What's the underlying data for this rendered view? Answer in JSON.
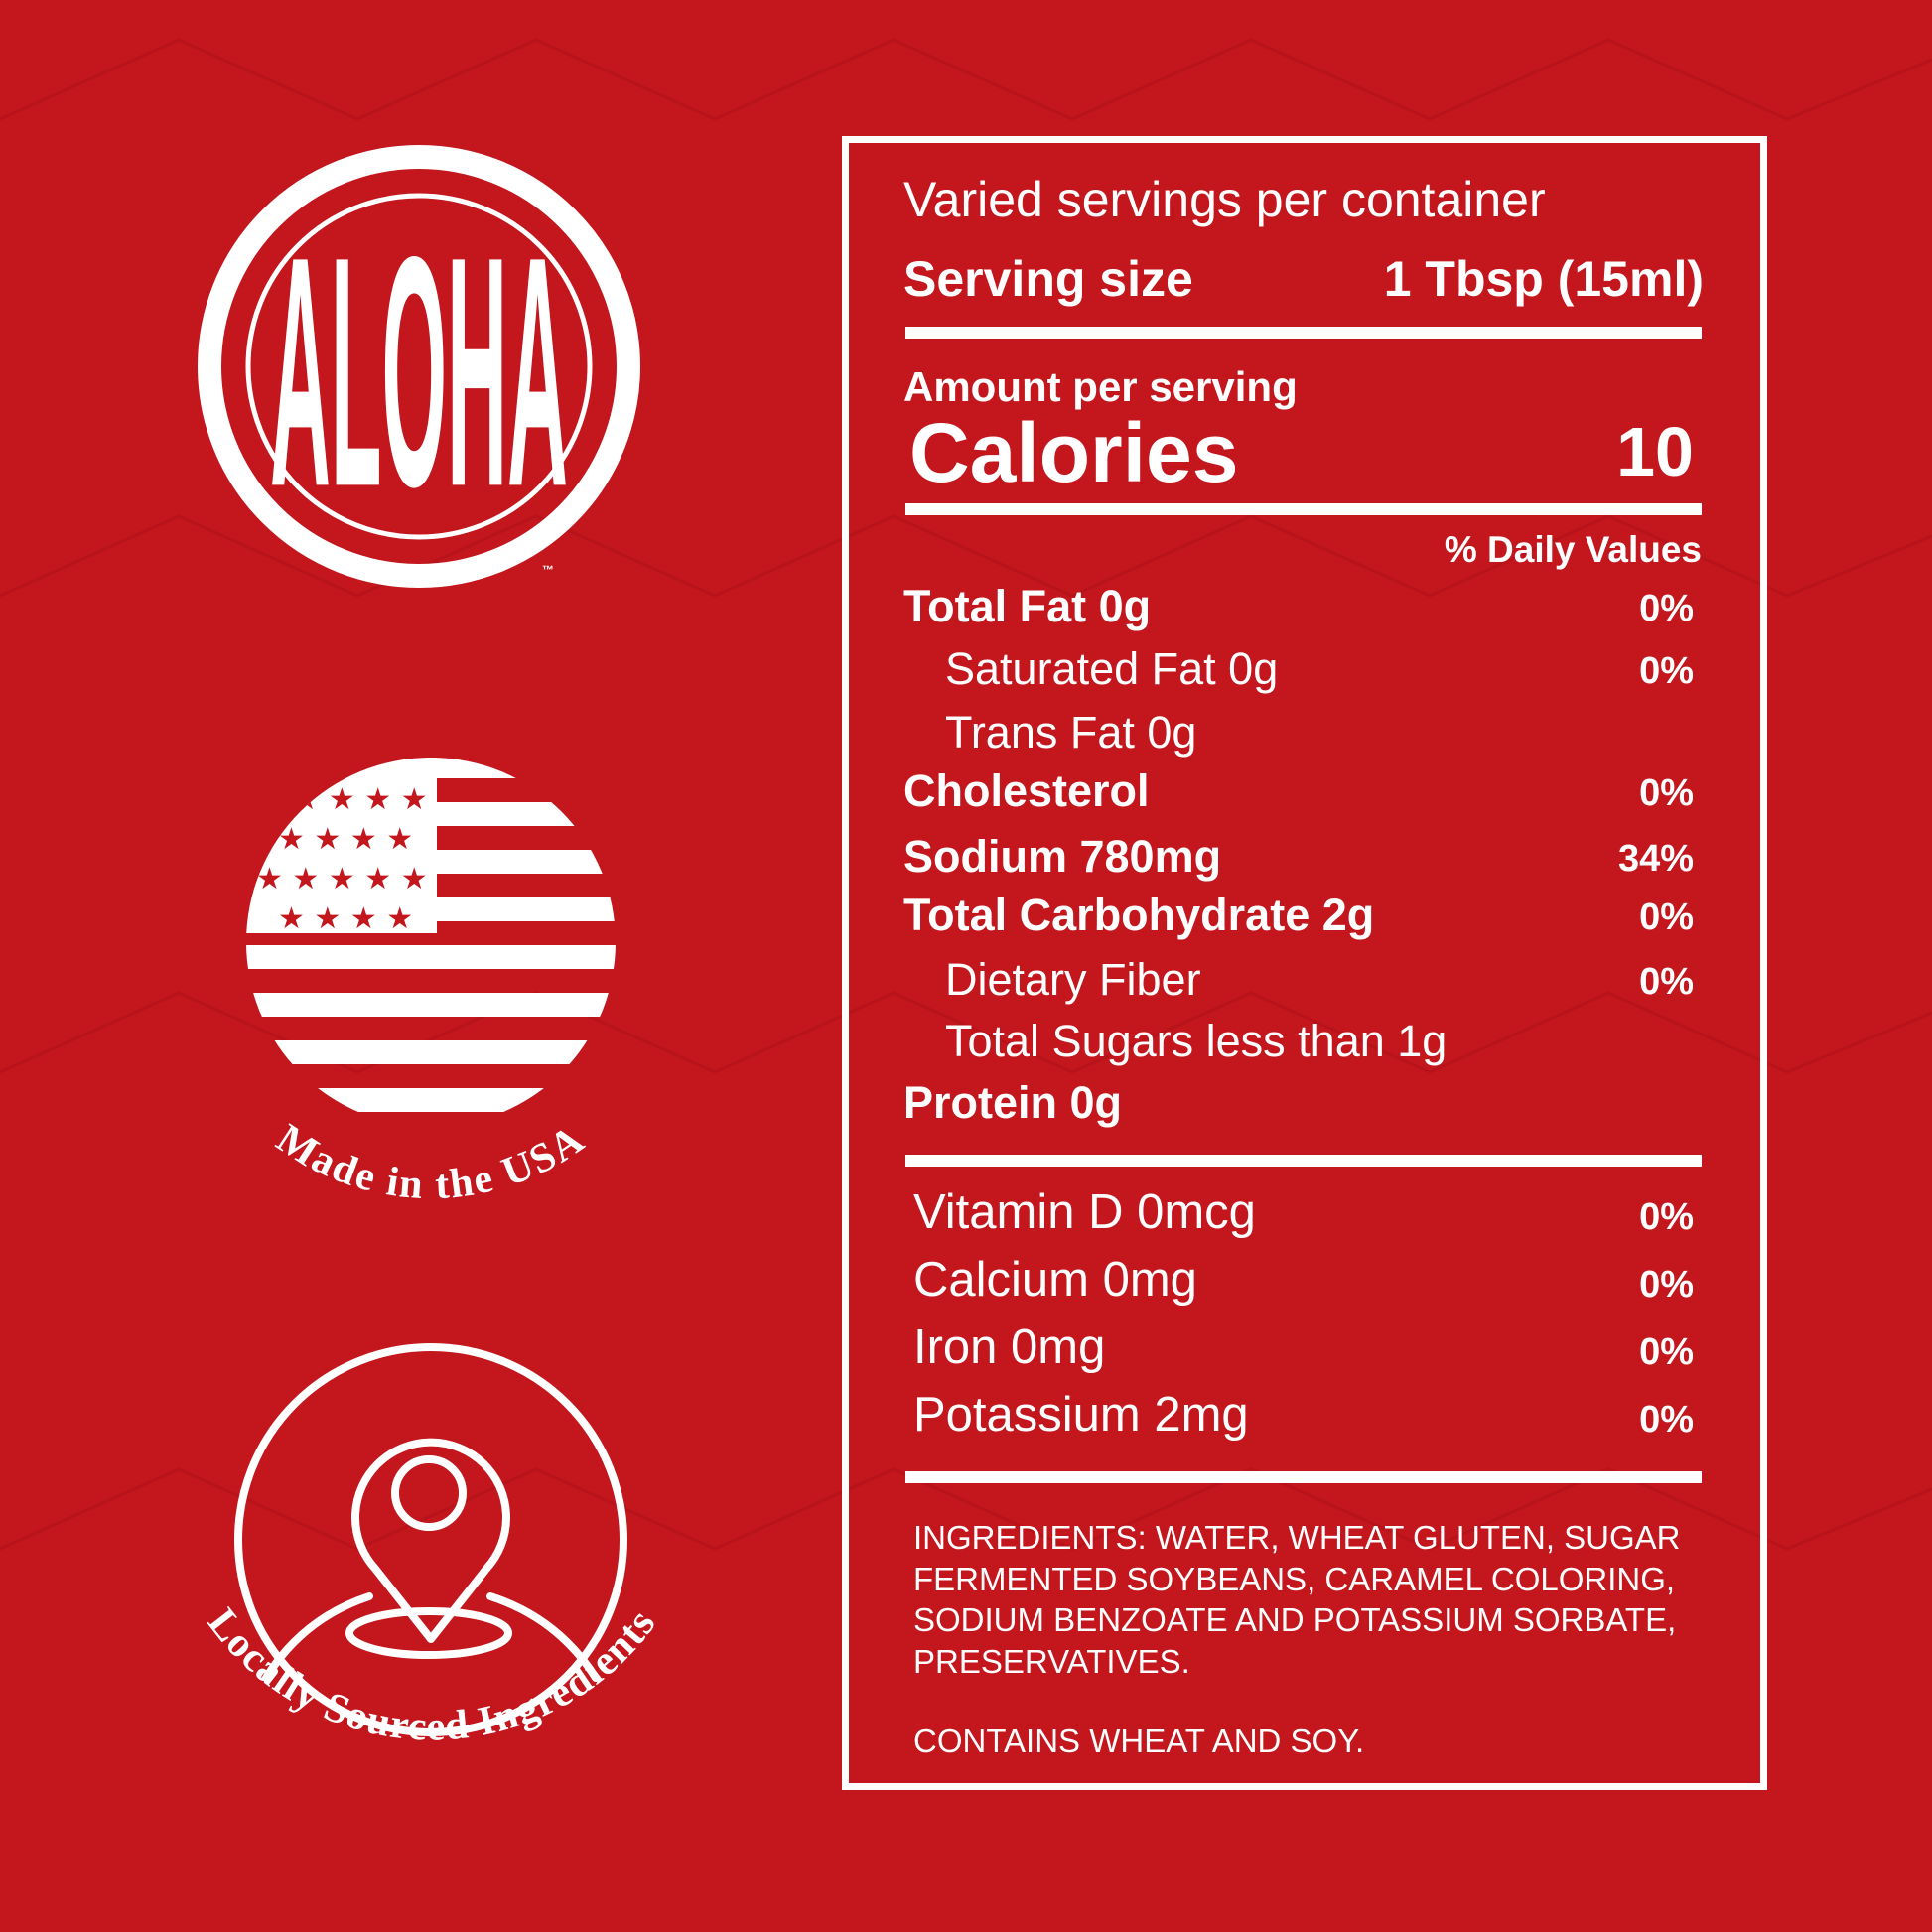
{
  "badges": {
    "logo": "ALOHA",
    "trademark": "™",
    "made_in": "Made in the USA",
    "sourced": "Locally Sourced Ingredients"
  },
  "label": {
    "servings": "Varied servings per container",
    "serving_size": {
      "label": "Serving size",
      "value": "1 Tbsp (15ml)"
    },
    "amount": "Amount per serving",
    "calories": {
      "label": "Calories",
      "value": "10"
    },
    "dv_header": "% Daily Values",
    "nutrients": [
      {
        "name": "Total Fat 0g",
        "dv": "0%",
        "sub": [
          {
            "name": "Saturated Fat 0g",
            "dv": "0%"
          },
          {
            "name": "Trans Fat 0g"
          }
        ]
      },
      {
        "name": "Cholesterol",
        "dv": "0%"
      },
      {
        "name": "Sodium 780mg",
        "dv": "34%"
      },
      {
        "name": "Total Carbohydrate 2g",
        "dv": "0%",
        "sub": [
          {
            "name": "Dietary Fiber",
            "dv": "0%"
          },
          {
            "name": "Total Sugars less than 1g"
          }
        ]
      },
      {
        "name": "Protein 0g"
      }
    ],
    "vitamins": [
      {
        "name": "Vitamin D 0mcg",
        "dv": "0%"
      },
      {
        "name": "Calcium 0mg",
        "dv": "0%"
      },
      {
        "name": "Iron 0mg",
        "dv": "0%"
      },
      {
        "name": "Potassium 2mg",
        "dv": "0%"
      }
    ],
    "ingredients": "INGREDIENTS: WATER, WHEAT GLUTEN, SUGAR FERMENTED SOYBEANS, CARAMEL COLORING, SODIUM BENZOATE AND POTASSIUM SORBATE, PRESERVATIVES.",
    "allergens": "CONTAINS WHEAT AND SOY."
  }
}
